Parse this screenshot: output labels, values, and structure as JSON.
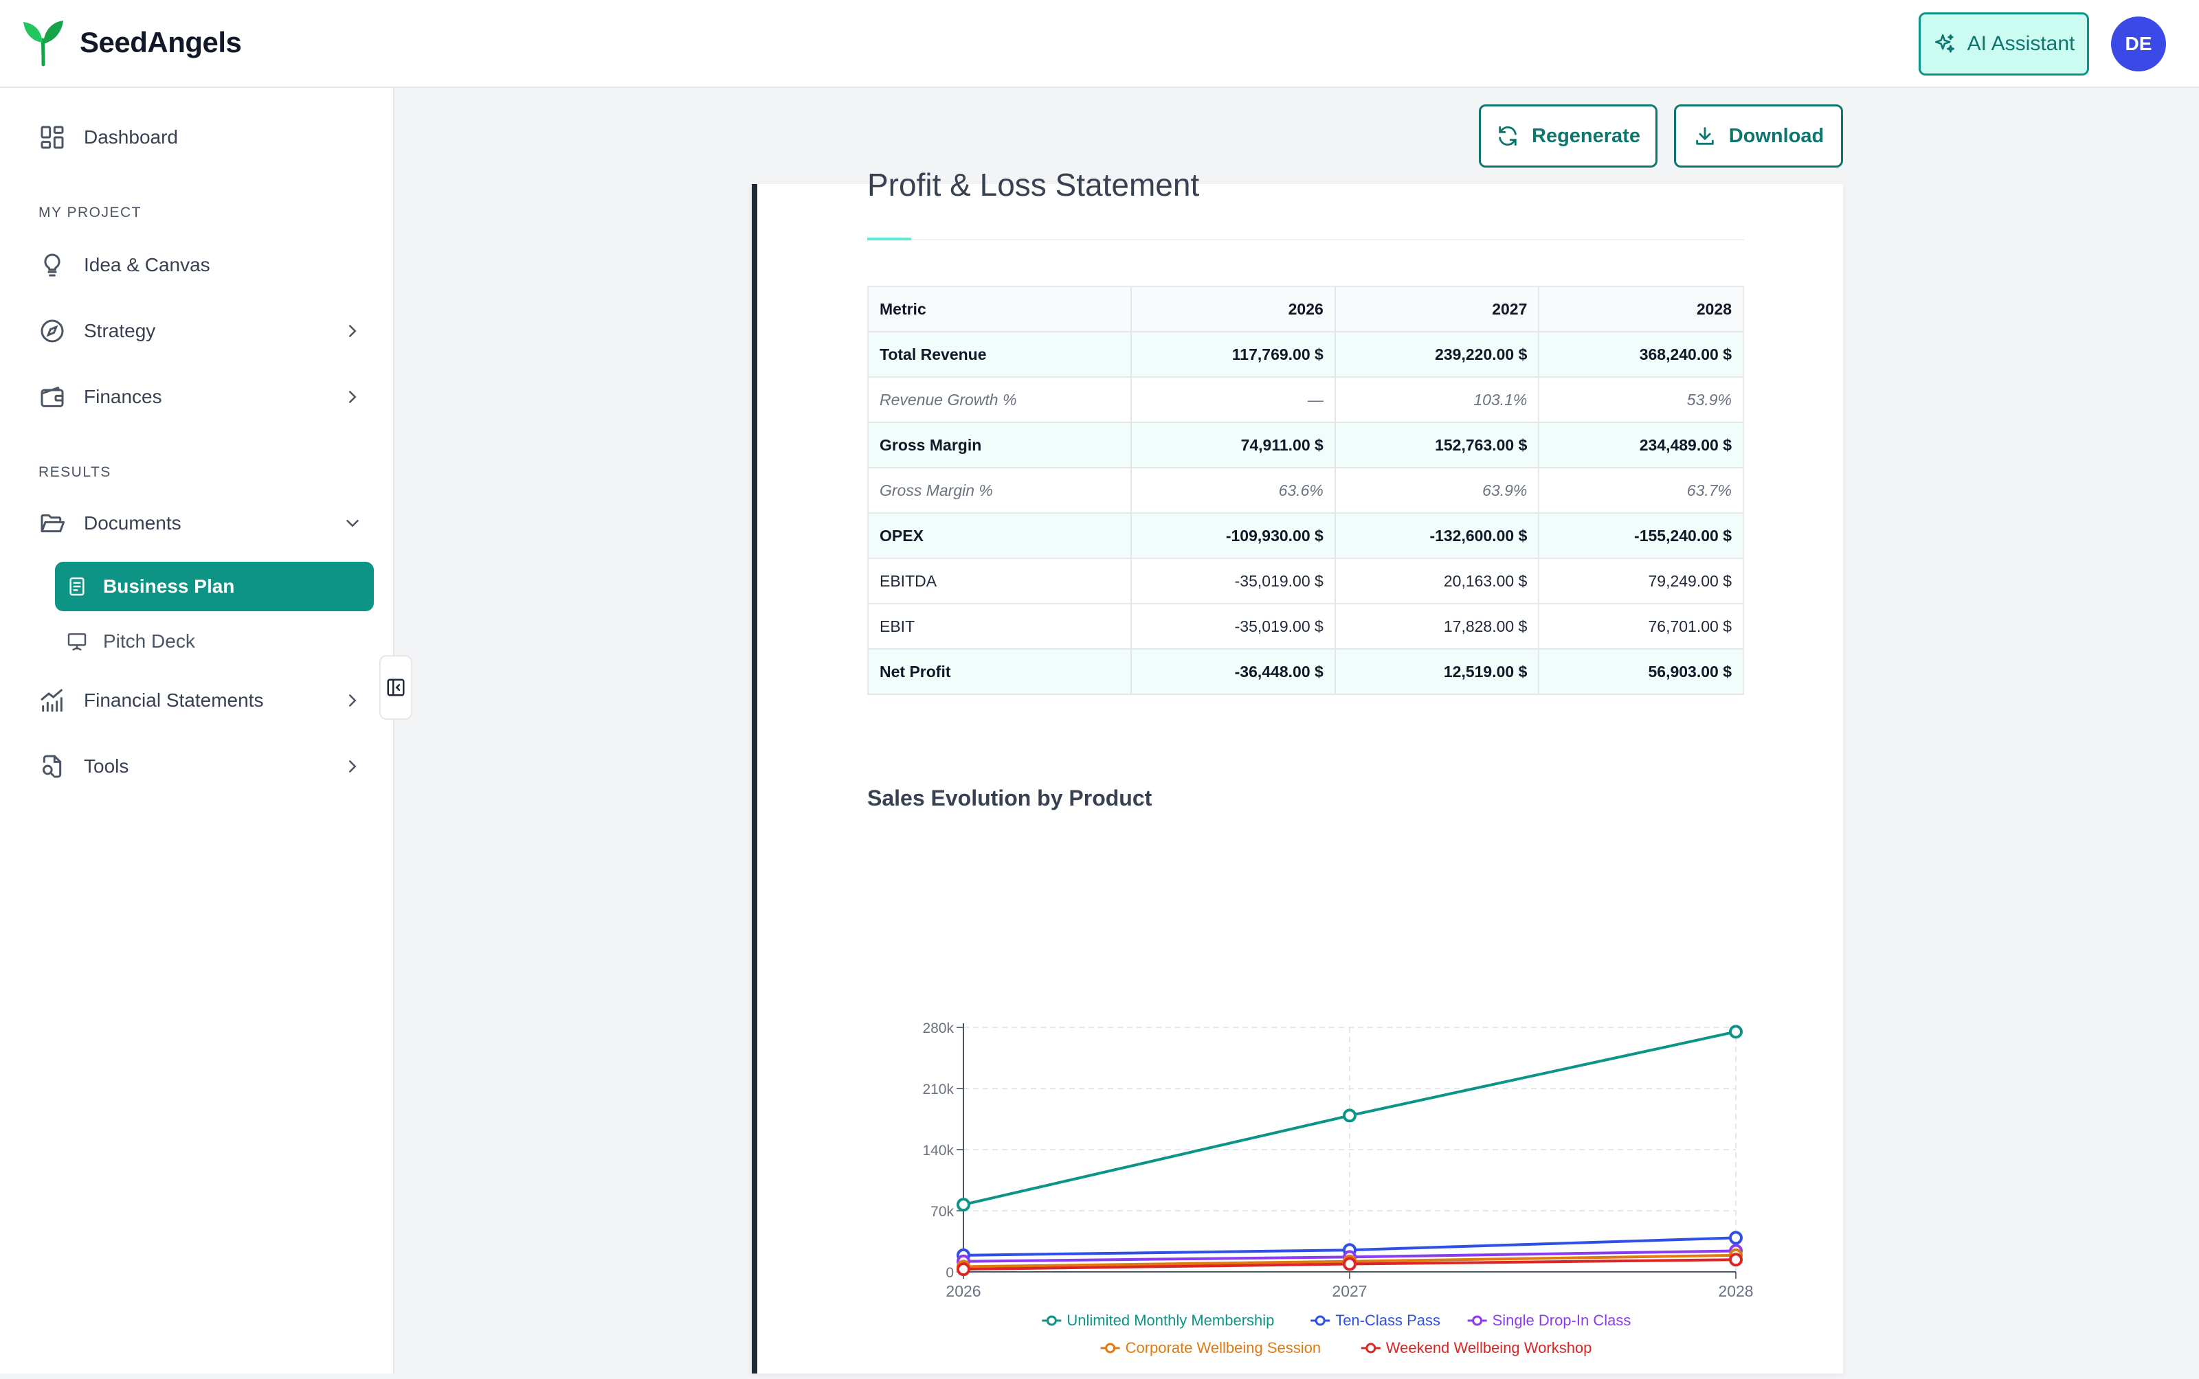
{
  "app": {
    "name": "SeedAngels"
  },
  "header": {
    "ai_label": "AI Assistant",
    "avatar_initials": "DE"
  },
  "sidebar": {
    "dashboard": "Dashboard",
    "section_project": "MY PROJECT",
    "idea": "Idea & Canvas",
    "strategy": "Strategy",
    "finances": "Finances",
    "section_results": "RESULTS",
    "documents": "Documents",
    "business_plan": "Business Plan",
    "pitch_deck": "Pitch Deck",
    "financial_statements": "Financial Statements",
    "tools": "Tools"
  },
  "actions": {
    "regenerate": "Regenerate",
    "download": "Download"
  },
  "document": {
    "section_title": "Profit & Loss Statement",
    "table": {
      "headers": [
        "Metric",
        "2026",
        "2027",
        "2028"
      ],
      "rows": [
        {
          "style": "bold",
          "cells": [
            "Total Revenue",
            "117,769.00 $",
            "239,220.00 $",
            "368,240.00 $"
          ]
        },
        {
          "style": "ital",
          "cells": [
            "Revenue Growth %",
            "—",
            "103.1%",
            "53.9%"
          ]
        },
        {
          "style": "bold",
          "cells": [
            "Gross Margin",
            "74,911.00 $",
            "152,763.00 $",
            "234,489.00 $"
          ]
        },
        {
          "style": "ital",
          "cells": [
            "Gross Margin %",
            "63.6%",
            "63.9%",
            "63.7%"
          ]
        },
        {
          "style": "bold",
          "cells": [
            "OPEX",
            "-109,930.00 $",
            "-132,600.00 $",
            "-155,240.00 $"
          ]
        },
        {
          "style": "plain",
          "cells": [
            "EBITDA",
            "-35,019.00 $",
            "20,163.00 $",
            "79,249.00 $"
          ]
        },
        {
          "style": "plain",
          "cells": [
            "EBIT",
            "-35,019.00 $",
            "17,828.00 $",
            "76,701.00 $"
          ]
        },
        {
          "style": "bold",
          "cells": [
            "Net Profit",
            "-36,448.00 $",
            "12,519.00 $",
            "56,903.00 $"
          ]
        }
      ]
    }
  },
  "chart_data": {
    "type": "line",
    "title": "Sales Evolution by Product",
    "xlabel": "",
    "ylabel": "",
    "x": [
      "2026",
      "2027",
      "2028"
    ],
    "ylim": [
      0,
      280000
    ],
    "y_ticks": [
      0,
      70000,
      140000,
      210000,
      280000
    ],
    "y_tick_labels": [
      "0",
      "70k",
      "140k",
      "210k",
      "280k"
    ],
    "grid": true,
    "legend_position": "bottom",
    "series": [
      {
        "name": "Unlimited Monthly Membership",
        "color": "#0d9488",
        "values": [
          77000,
          179000,
          275000
        ]
      },
      {
        "name": "Ten-Class Pass",
        "color": "#2f50e6",
        "values": [
          19000,
          25000,
          39000
        ]
      },
      {
        "name": "Single Drop-In Class",
        "color": "#8b3cf0",
        "values": [
          12000,
          17000,
          24000
        ]
      },
      {
        "name": "Corporate Wellbeing Session",
        "color": "#e07a10",
        "values": [
          6000,
          12000,
          19000
        ]
      },
      {
        "name": "Weekend Wellbeing Workshop",
        "color": "#dc2626",
        "values": [
          3000,
          9000,
          14000
        ]
      }
    ]
  }
}
